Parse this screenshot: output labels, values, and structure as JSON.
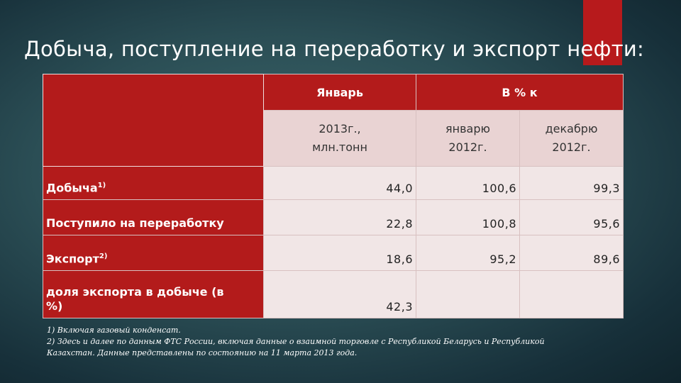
{
  "slide": {
    "title": "Добыча, поступление на переработку и экспорт нефти:"
  },
  "table": {
    "header": {
      "january": "Январь",
      "percent_of": "В % к",
      "unit_line1": "2013г.,",
      "unit_line2": "млн.тонн",
      "jan_line1": "январю",
      "jan_line2": "2012г.",
      "dec_line1": "декабрю",
      "dec_line2": "2012г."
    },
    "rows": [
      {
        "label": "Добыча",
        "sup": "1)",
        "value": "44,0",
        "jan": "100,6",
        "dec": "99,3"
      },
      {
        "label": "Поступило на переработку",
        "sup": "",
        "value": "22,8",
        "jan": "100,8",
        "dec": "95,6"
      },
      {
        "label": "Экспорт",
        "sup": "2)",
        "value": "18,6",
        "jan": "95,2",
        "dec": "89,6"
      },
      {
        "label_line1": "доля экспорта в добыче (в",
        "label_line2": "%)",
        "value": "42,3",
        "jan": "",
        "dec": ""
      }
    ]
  },
  "footnotes": [
    "1) Включая газовый конденсат.",
    "2) Здесь и далее по данным ФТС России, включая данные о взаимной торговле с Республикой Беларусь и Республикой",
    "Казахстан. Данные представлены по состоянию на 11 марта 2013 года."
  ],
  "colors": {
    "accent": "#b71a1c",
    "header_red": "#b31b1b",
    "header_pink": "#e9d3d3",
    "cell_bg": "#f1e6e6"
  }
}
